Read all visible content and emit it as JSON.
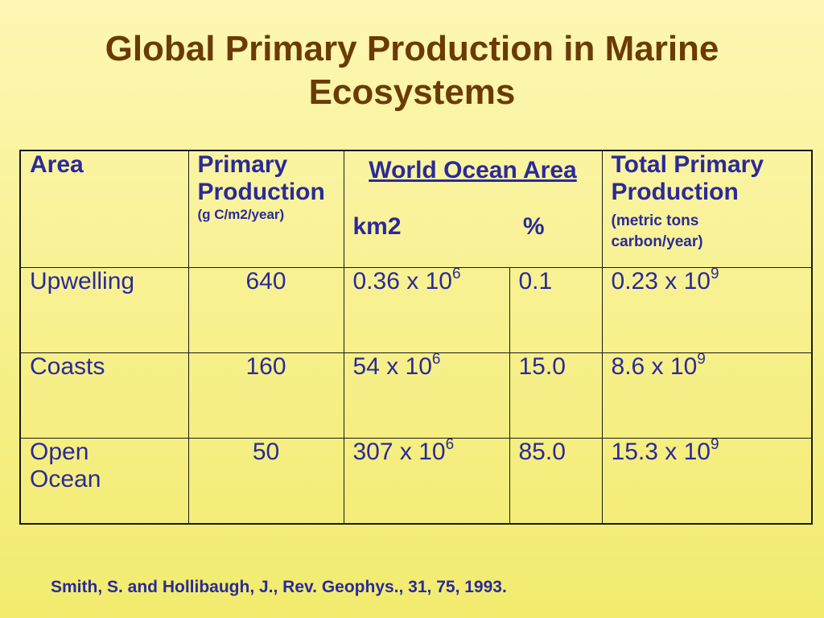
{
  "title": {
    "line1": "Global Primary Production in Marine",
    "line2": "Ecosystems"
  },
  "table": {
    "headers": {
      "area": "Area",
      "primary_production": {
        "line1": "Primary",
        "line2": "Production",
        "unit": "(g C/m2/year)"
      },
      "world_ocean_area": {
        "label": "World Ocean Area",
        "sub_km2": "km2",
        "sub_percent": "%"
      },
      "total_primary_production": {
        "line1": "Total Primary",
        "line2": "Production",
        "unit_line1": "(metric tons",
        "unit_line2": "carbon/year)"
      }
    },
    "rows": [
      {
        "area": "Upwelling",
        "area_line2": "",
        "production": "640",
        "area_km2_base": "0.36 x 10",
        "area_km2_exp": "6",
        "percent": "0.1",
        "total_base": "0.23 x 10",
        "total_exp": "9"
      },
      {
        "area": "Coasts",
        "area_line2": "",
        "production": "160",
        "area_km2_base": "54 x 10",
        "area_km2_exp": "6",
        "percent": "15.0",
        "total_base": "8.6 x 10",
        "total_exp": "9"
      },
      {
        "area": "Open",
        "area_line2": "Ocean",
        "production": "50",
        "area_km2_base": "307 x 10",
        "area_km2_exp": "6",
        "percent": "85.0",
        "total_base": "15.3 x 10",
        "total_exp": "9"
      }
    ]
  },
  "citation": "Smith, S. and Hollibaugh, J., Rev. Geophys., 31, 75, 1993.",
  "colors": {
    "background": "#f7f08c",
    "title": "#6b3a05",
    "text": "#2a2a9a"
  }
}
